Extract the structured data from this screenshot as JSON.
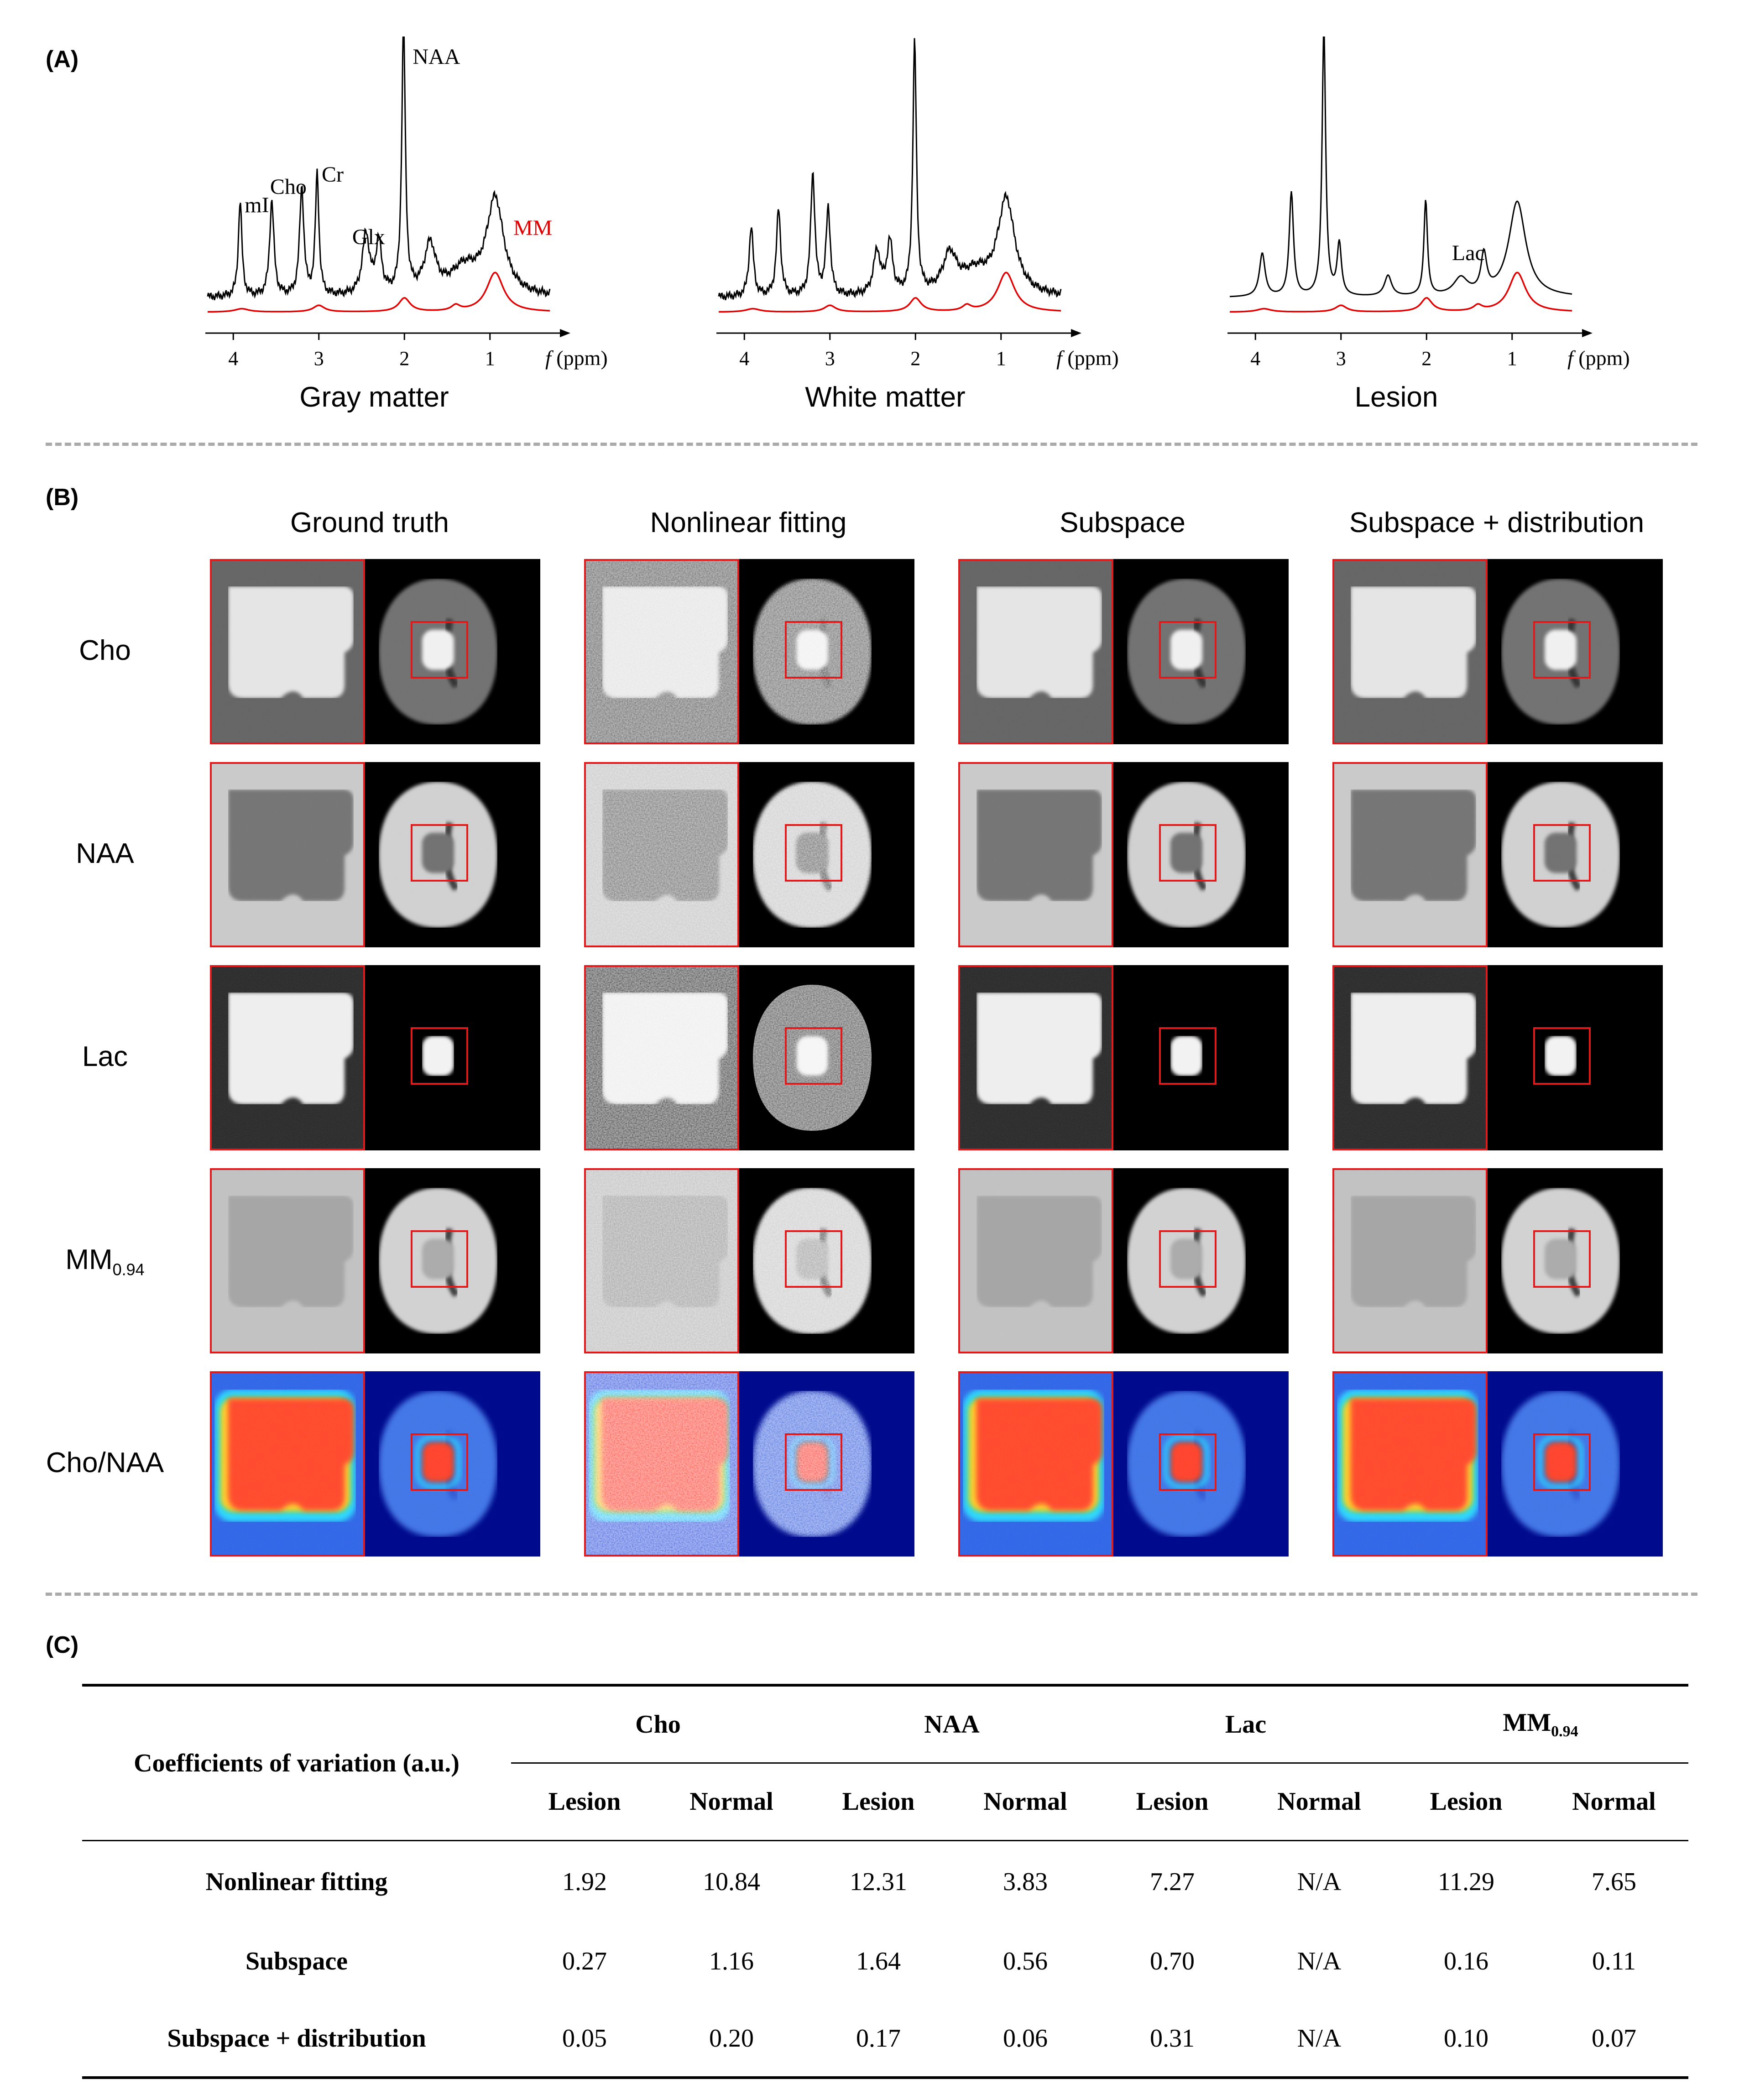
{
  "panel_labels": {
    "a": "(A)",
    "b": "(B)",
    "c": "(C)"
  },
  "panel_a": {
    "spectra": [
      {
        "title": "Gray matter",
        "annotations": [
          "NAA",
          "Cho",
          "Cr",
          "mI",
          "Glx",
          "MM"
        ]
      },
      {
        "title": "White matter",
        "annotations": []
      },
      {
        "title": "Lesion",
        "annotations": [
          "Lac"
        ]
      }
    ],
    "ticks": [
      "4",
      "3",
      "2",
      "1"
    ],
    "axis_label_f": "f",
    "axis_label_unit": "(ppm)",
    "colors": {
      "spectrum": "#000000",
      "mm": "#e00000"
    }
  },
  "chart_data": {
    "type": "line",
    "title": "",
    "xlabel": "f (ppm)",
    "x_reversed": true,
    "xlim": [
      4.3,
      0.3
    ],
    "series": [
      {
        "name": "Gray matter spectrum",
        "peaks_ppm": [
          3.9,
          3.6,
          3.2,
          3.02,
          2.35,
          2.01,
          0.94
        ]
      },
      {
        "name": "Gray matter MM",
        "peaks_ppm": [
          2.0,
          0.94
        ]
      },
      {
        "name": "White matter spectrum",
        "peaks_ppm": [
          3.9,
          3.6,
          3.2,
          3.02,
          2.01,
          0.94
        ]
      },
      {
        "name": "Lesion spectrum",
        "peaks_ppm": [
          3.6,
          3.2,
          2.01,
          1.33,
          0.94
        ]
      }
    ]
  },
  "panel_b": {
    "columns": [
      "Ground truth",
      "Nonlinear fitting",
      "Subspace",
      "Subspace + distribution"
    ],
    "rows": [
      {
        "label": "Cho"
      },
      {
        "label": "NAA"
      },
      {
        "label": "Lac"
      },
      {
        "label_main": "MM",
        "label_sub": "0.94"
      },
      {
        "label": "Cho/NAA"
      }
    ]
  },
  "panel_c": {
    "corner_header": "Coefficients of variation (a.u.)",
    "groups": [
      {
        "label": "Cho"
      },
      {
        "label": "NAA"
      },
      {
        "label": "Lac"
      },
      {
        "label_main": "MM",
        "label_sub": "0.94"
      }
    ],
    "subheaders": [
      "Lesion",
      "Normal",
      "Lesion",
      "Normal",
      "Lesion",
      "Normal",
      "Lesion",
      "Normal"
    ],
    "rows": [
      {
        "method": "Nonlinear fitting",
        "values": [
          "1.92",
          "10.84",
          "12.31",
          "3.83",
          "7.27",
          "N/A",
          "11.29",
          "7.65"
        ]
      },
      {
        "method": "Subspace",
        "values": [
          "0.27",
          "1.16",
          "1.64",
          "0.56",
          "0.70",
          "N/A",
          "0.16",
          "0.11"
        ]
      },
      {
        "method": "Subspace + distribution",
        "values": [
          "0.05",
          "0.20",
          "0.17",
          "0.06",
          "0.31",
          "N/A",
          "0.10",
          "0.07"
        ]
      }
    ]
  }
}
